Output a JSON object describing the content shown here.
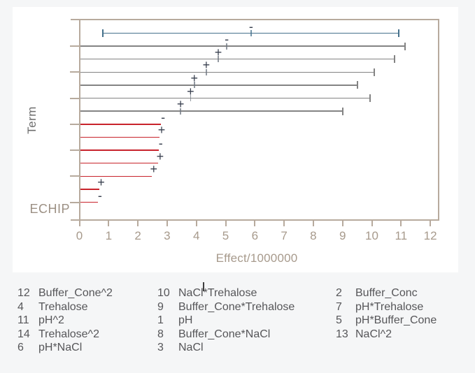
{
  "chart_data": {
    "type": "bar",
    "orientation": "horizontal",
    "title": "",
    "xlabel": "Effect/1000000",
    "ylabel": "Term",
    "bottom_category": "ECHIP",
    "xlim": [
      0,
      12.3
    ],
    "x_ticks": [
      0,
      1,
      2,
      3,
      4,
      5,
      6,
      7,
      8,
      9,
      10,
      11,
      12
    ],
    "grid": "off",
    "legend_position": "below",
    "note": "Pareto-style effects plot; each line runs from 0 (or lower CI for first term) to the upper confidence limit with a tick and +/- sign at the effect estimate; red lines end at the effect value (not significant).",
    "terms": [
      {
        "legend_number": 12,
        "label": "Buffer_Cone^2",
        "effect": 5.87,
        "lower_ci": 0.8,
        "upper_ci": 10.92,
        "sign": "-",
        "color": "blue"
      },
      {
        "legend_number": 4,
        "label": "Trehalose",
        "effect": 5.04,
        "upper_ci": 11.13,
        "sign": "-",
        "color": "gray"
      },
      {
        "legend_number": 11,
        "label": "pH^2",
        "effect": 4.75,
        "upper_ci": 10.78,
        "sign": "+",
        "color": "gray"
      },
      {
        "legend_number": 14,
        "label": "Trehalose^2",
        "effect": 4.34,
        "upper_ci": 10.08,
        "sign": "+",
        "color": "gray"
      },
      {
        "legend_number": 6,
        "label": "pH*NaCl",
        "effect": 3.93,
        "upper_ci": 9.51,
        "sign": "+",
        "color": "gray"
      },
      {
        "legend_number": 10,
        "label": "NaCl*Trehalose",
        "effect": 3.8,
        "upper_ci": 9.94,
        "sign": "+",
        "color": "gray"
      },
      {
        "legend_number": 9,
        "label": "Buffer_Cone*Trehalose",
        "effect": 3.46,
        "upper_ci": 9.0,
        "sign": "+",
        "color": "gray"
      },
      {
        "legend_number": 1,
        "label": "pH",
        "effect": 2.79,
        "sign": "-",
        "color": "red"
      },
      {
        "legend_number": 8,
        "label": "Buffer_Cone*NaCl",
        "effect": 2.74,
        "sign": "+",
        "color": "red"
      },
      {
        "legend_number": 3,
        "label": "NaCl",
        "effect": 2.71,
        "sign": "-",
        "color": "red"
      },
      {
        "legend_number": 2,
        "label": "Buffer_Conc",
        "effect": 2.69,
        "sign": "+",
        "color": "red"
      },
      {
        "legend_number": 7,
        "label": "pH*Trehalose",
        "effect": 2.47,
        "sign": "+",
        "color": "red"
      },
      {
        "legend_number": 5,
        "label": "pH*Buffer_Cone",
        "effect": 0.67,
        "sign": "+",
        "color": "red"
      },
      {
        "legend_number": 13,
        "label": "NaCl^2",
        "effect": 0.63,
        "sign": "-",
        "color": "red"
      }
    ],
    "colors": {
      "blue_line": "#45718c",
      "gray_line": "#838383",
      "red_line": "#c8232b",
      "sign_text": "#39404f",
      "axis_frame": "#b7aa9d",
      "axis_text": "#a79a8c"
    }
  },
  "legend": {
    "columns": [
      {
        "entries": [
          {
            "num": "12",
            "label": "Buffer_Cone^2"
          },
          {
            "num": "4",
            "label": "Trehalose"
          },
          {
            "num": "11",
            "label": "pH^2"
          },
          {
            "num": "14",
            "label": "Trehalose^2"
          },
          {
            "num": "6",
            "label": "pH*NaCl"
          }
        ]
      },
      {
        "entries": [
          {
            "num": "10",
            "label": "NaCl*Trehalose"
          },
          {
            "num": "9",
            "label": "Buffer_Cone*Trehalose"
          },
          {
            "num": "1",
            "label": "pH"
          },
          {
            "num": "8",
            "label": "Buffer_Cone*NaCl"
          },
          {
            "num": "3",
            "label": "NaCl"
          }
        ]
      },
      {
        "entries": [
          {
            "num": "2",
            "label": "Buffer_Conc"
          },
          {
            "num": "7",
            "label": "pH*Trehalose"
          },
          {
            "num": "5",
            "label": "pH*Buffer_Cone"
          },
          {
            "num": "13",
            "label": "NaCl^2"
          }
        ]
      }
    ]
  }
}
